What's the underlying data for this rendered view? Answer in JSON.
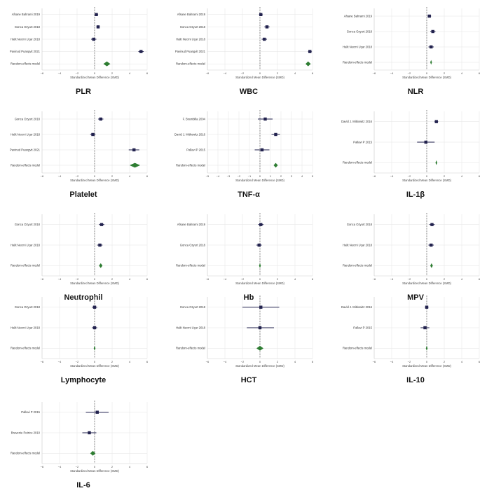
{
  "figure": {
    "accent_colors": {
      "estimate": "#23234f",
      "pooled": "#2e7d32",
      "null_line": "#5a5a5a"
    }
  },
  "chart_data": [
    {
      "id": "plr",
      "type": "forest",
      "title": "PLR",
      "xlabel": "Standardized Mean Difference (SMD)",
      "xlim": [
        -6,
        6
      ],
      "xticks": [
        -6,
        -4,
        -2,
        0,
        2,
        4,
        6
      ],
      "studies": [
        {
          "label": "Afsane Bahrami 2019",
          "est": 0.2,
          "lo": 0.0,
          "hi": 0.4
        },
        {
          "label": "Gonca Ozyurt 2018",
          "est": 0.4,
          "lo": 0.2,
          "hi": 0.6
        },
        {
          "label": "Halit Necmi Uçar 2018",
          "est": -0.1,
          "lo": -0.4,
          "hi": 0.2
        },
        {
          "label": "Pavinud Puangvit 2021",
          "est": 5.3,
          "lo": 5.0,
          "hi": 5.6
        }
      ],
      "pooled": {
        "label": "Random-effects model",
        "est": 1.4,
        "lo": 1.0,
        "hi": 1.8
      }
    },
    {
      "id": "wbc",
      "type": "forest",
      "title": "WBC",
      "xlabel": "Standardized Mean Difference (SMD)",
      "xlim": [
        -6,
        6
      ],
      "xticks": [
        -6,
        -4,
        -2,
        0,
        2,
        4,
        6
      ],
      "studies": [
        {
          "label": "Afsane Bahrami 2019",
          "est": 0.1,
          "lo": -0.1,
          "hi": 0.3
        },
        {
          "label": "Gonca Ozyurt 2018",
          "est": 0.8,
          "lo": 0.5,
          "hi": 1.1
        },
        {
          "label": "Halit Necmi Uçar 2018",
          "est": 0.5,
          "lo": 0.2,
          "hi": 0.8
        },
        {
          "label": "Pavinud Puangvit 2021",
          "est": 5.7,
          "lo": 5.5,
          "hi": 5.9
        }
      ],
      "pooled": {
        "label": "Random-effects model",
        "est": 5.5,
        "lo": 5.2,
        "hi": 5.8
      }
    },
    {
      "id": "nlr",
      "type": "forest",
      "title": "NLR",
      "xlabel": "Standardized Mean Difference (SMD)",
      "xlim": [
        -6,
        6
      ],
      "xticks": [
        -6,
        -4,
        -2,
        0,
        2,
        4,
        6
      ],
      "studies": [
        {
          "label": "Afsane Bahrami 2019",
          "est": 0.3,
          "lo": 0.1,
          "hi": 0.5
        },
        {
          "label": "Gonca Ozyurt 2018",
          "est": 0.7,
          "lo": 0.4,
          "hi": 1.0
        },
        {
          "label": "Halit Necmi Uçar 2018",
          "est": 0.5,
          "lo": 0.2,
          "hi": 0.8
        }
      ],
      "pooled": {
        "label": "Random-effects model",
        "est": 0.5,
        "lo": 0.4,
        "hi": 0.6
      }
    },
    {
      "id": "platelet",
      "type": "forest",
      "title": "Platelet",
      "xlabel": "Standardized Mean Difference (SMD)",
      "xlim": [
        -6,
        6
      ],
      "xticks": [
        -6,
        -4,
        -2,
        0,
        2,
        4,
        6
      ],
      "studies": [
        {
          "label": "Gonca Ozyurt 2018",
          "est": 0.7,
          "lo": 0.4,
          "hi": 1.0
        },
        {
          "label": "Halit Necmi Uçar 2018",
          "est": -0.2,
          "lo": -0.5,
          "hi": 0.1
        },
        {
          "label": "Pavinud Puangvit 2021",
          "est": 4.5,
          "lo": 3.9,
          "hi": 5.1
        }
      ],
      "pooled": {
        "label": "Random-effects model",
        "est": 4.6,
        "lo": 4.0,
        "hi": 5.2
      }
    },
    {
      "id": "tnf",
      "type": "forest",
      "title": "TNF-α",
      "xlabel": "Standardized Mean Difference (SMD)",
      "xlim": [
        -5,
        5
      ],
      "xticks": [
        -5,
        -4,
        -3,
        -2,
        -1,
        0,
        1,
        2,
        3,
        4,
        5
      ],
      "studies": [
        {
          "label": "F. Brambilla 2004",
          "est": 0.5,
          "lo": -0.2,
          "hi": 1.2
        },
        {
          "label": "David J. Mitkowitz 2016",
          "est": 1.5,
          "lo": 1.1,
          "hi": 1.9
        },
        {
          "label": "Pallavi P 2015",
          "est": 0.2,
          "lo": -0.5,
          "hi": 0.9
        }
      ],
      "pooled": {
        "label": "Random-effects model",
        "est": 1.5,
        "lo": 1.3,
        "hi": 1.7
      }
    },
    {
      "id": "il1b",
      "type": "forest",
      "title": "IL-1β",
      "xlabel": "Standardized Mean Difference (SMD)",
      "xlim": [
        -6,
        6
      ],
      "xticks": [
        -6,
        -4,
        -2,
        0,
        2,
        4,
        6
      ],
      "studies": [
        {
          "label": "David J. Mitkowitz 2016",
          "est": 1.1,
          "lo": 0.9,
          "hi": 1.3
        },
        {
          "label": "Pallavi P 2015",
          "est": -0.1,
          "lo": -1.1,
          "hi": 0.9
        }
      ],
      "pooled": {
        "label": "Random-effects model",
        "est": 1.1,
        "lo": 1.0,
        "hi": 1.2
      }
    },
    {
      "id": "neutrophil",
      "type": "forest",
      "title": "Neutrophil",
      "xlabel": "Standardized Mean Difference (SMD)",
      "xlim": [
        -6,
        6
      ],
      "xticks": [
        -6,
        -4,
        -2,
        0,
        2,
        4,
        6
      ],
      "studies": [
        {
          "label": "Gonca Ozyurt 2018",
          "est": 0.8,
          "lo": 0.5,
          "hi": 1.1
        },
        {
          "label": "Halit Necmi Uçar 2018",
          "est": 0.6,
          "lo": 0.3,
          "hi": 0.9
        }
      ],
      "pooled": {
        "label": "Random-effects model",
        "est": 0.7,
        "lo": 0.5,
        "hi": 0.9
      }
    },
    {
      "id": "hb",
      "type": "forest",
      "title": "Hb",
      "xlabel": "Standardized Mean Difference (SMD)",
      "xlim": [
        -6,
        6
      ],
      "xticks": [
        -6,
        -4,
        -2,
        0,
        2,
        4,
        6
      ],
      "studies": [
        {
          "label": "Afsane Bahrami 2019",
          "est": 0.1,
          "lo": -0.2,
          "hi": 0.4
        },
        {
          "label": "Gonca Ozyurt 2018",
          "est": -0.1,
          "lo": -0.4,
          "hi": 0.2
        }
      ],
      "pooled": {
        "label": "Random-effects model",
        "est": 0.0,
        "lo": -0.1,
        "hi": 0.1
      }
    },
    {
      "id": "mpv",
      "type": "forest",
      "title": "MPV",
      "xlabel": "Standardized Mean Difference (SMD)",
      "xlim": [
        -6,
        6
      ],
      "xticks": [
        -6,
        -4,
        -2,
        0,
        2,
        4,
        6
      ],
      "studies": [
        {
          "label": "Gonca Ozyurt 2018",
          "est": 0.6,
          "lo": 0.3,
          "hi": 0.9
        },
        {
          "label": "Halit Necmi Uçar 2018",
          "est": 0.5,
          "lo": 0.2,
          "hi": 0.8
        }
      ],
      "pooled": {
        "label": "Random-effects model",
        "est": 0.55,
        "lo": 0.4,
        "hi": 0.7
      }
    },
    {
      "id": "lymphocyte",
      "type": "forest",
      "title": "Lymphocyte",
      "xlabel": "Standardized Mean Difference (SMD)",
      "xlim": [
        -6,
        6
      ],
      "xticks": [
        -6,
        -4,
        -2,
        0,
        2,
        4,
        6
      ],
      "studies": [
        {
          "label": "Gonca Ozyurt 2018",
          "est": 0.0,
          "lo": -0.3,
          "hi": 0.3
        },
        {
          "label": "Halit Necmi Uçar 2018",
          "est": 0.0,
          "lo": -0.3,
          "hi": 0.3
        }
      ],
      "pooled": {
        "label": "Random-effects model",
        "est": 0.0,
        "lo": -0.1,
        "hi": 0.1
      }
    },
    {
      "id": "hct",
      "type": "forest",
      "title": "HCT",
      "xlabel": "Standardized Mean Difference (SMD)",
      "xlim": [
        -6,
        6
      ],
      "xticks": [
        -6,
        -4,
        -2,
        0,
        2,
        4,
        6
      ],
      "studies": [
        {
          "label": "Gonca Ozyurt 2018",
          "est": 0.1,
          "lo": -2.0,
          "hi": 2.2
        },
        {
          "label": "Halit Necmi Uçar 2018",
          "est": 0.0,
          "lo": -1.5,
          "hi": 1.6
        }
      ],
      "pooled": {
        "label": "Random-effects model",
        "est": 0.0,
        "lo": -0.4,
        "hi": 0.4
      }
    },
    {
      "id": "il10",
      "type": "forest",
      "title": "IL-10",
      "xlabel": "Standardized Mean Difference (SMD)",
      "xlim": [
        -6,
        6
      ],
      "xticks": [
        -6,
        -4,
        -2,
        0,
        2,
        4,
        6
      ],
      "studies": [
        {
          "label": "David J. Mitkowitz 2016",
          "est": 0.0,
          "lo": -0.2,
          "hi": 0.2
        },
        {
          "label": "Pallavi P 2015",
          "est": -0.2,
          "lo": -0.7,
          "hi": 0.3
        }
      ],
      "pooled": {
        "label": "Random-effects model",
        "est": 0.0,
        "lo": -0.1,
        "hi": 0.1
      }
    },
    {
      "id": "il6",
      "type": "forest",
      "title": "IL-6",
      "xlabel": "Standardized Mean Difference (SMD)",
      "xlim": [
        -6,
        6
      ],
      "xticks": [
        -6,
        -4,
        -2,
        0,
        2,
        4,
        6
      ],
      "studies": [
        {
          "label": "Pallavi P 2015",
          "est": 0.3,
          "lo": -1.0,
          "hi": 1.6
        },
        {
          "label": "Bravenie Petrice 2010",
          "est": -0.6,
          "lo": -1.4,
          "hi": 0.2
        }
      ],
      "pooled": {
        "label": "Random-effects model",
        "est": -0.2,
        "lo": -0.5,
        "hi": 0.1
      }
    }
  ]
}
